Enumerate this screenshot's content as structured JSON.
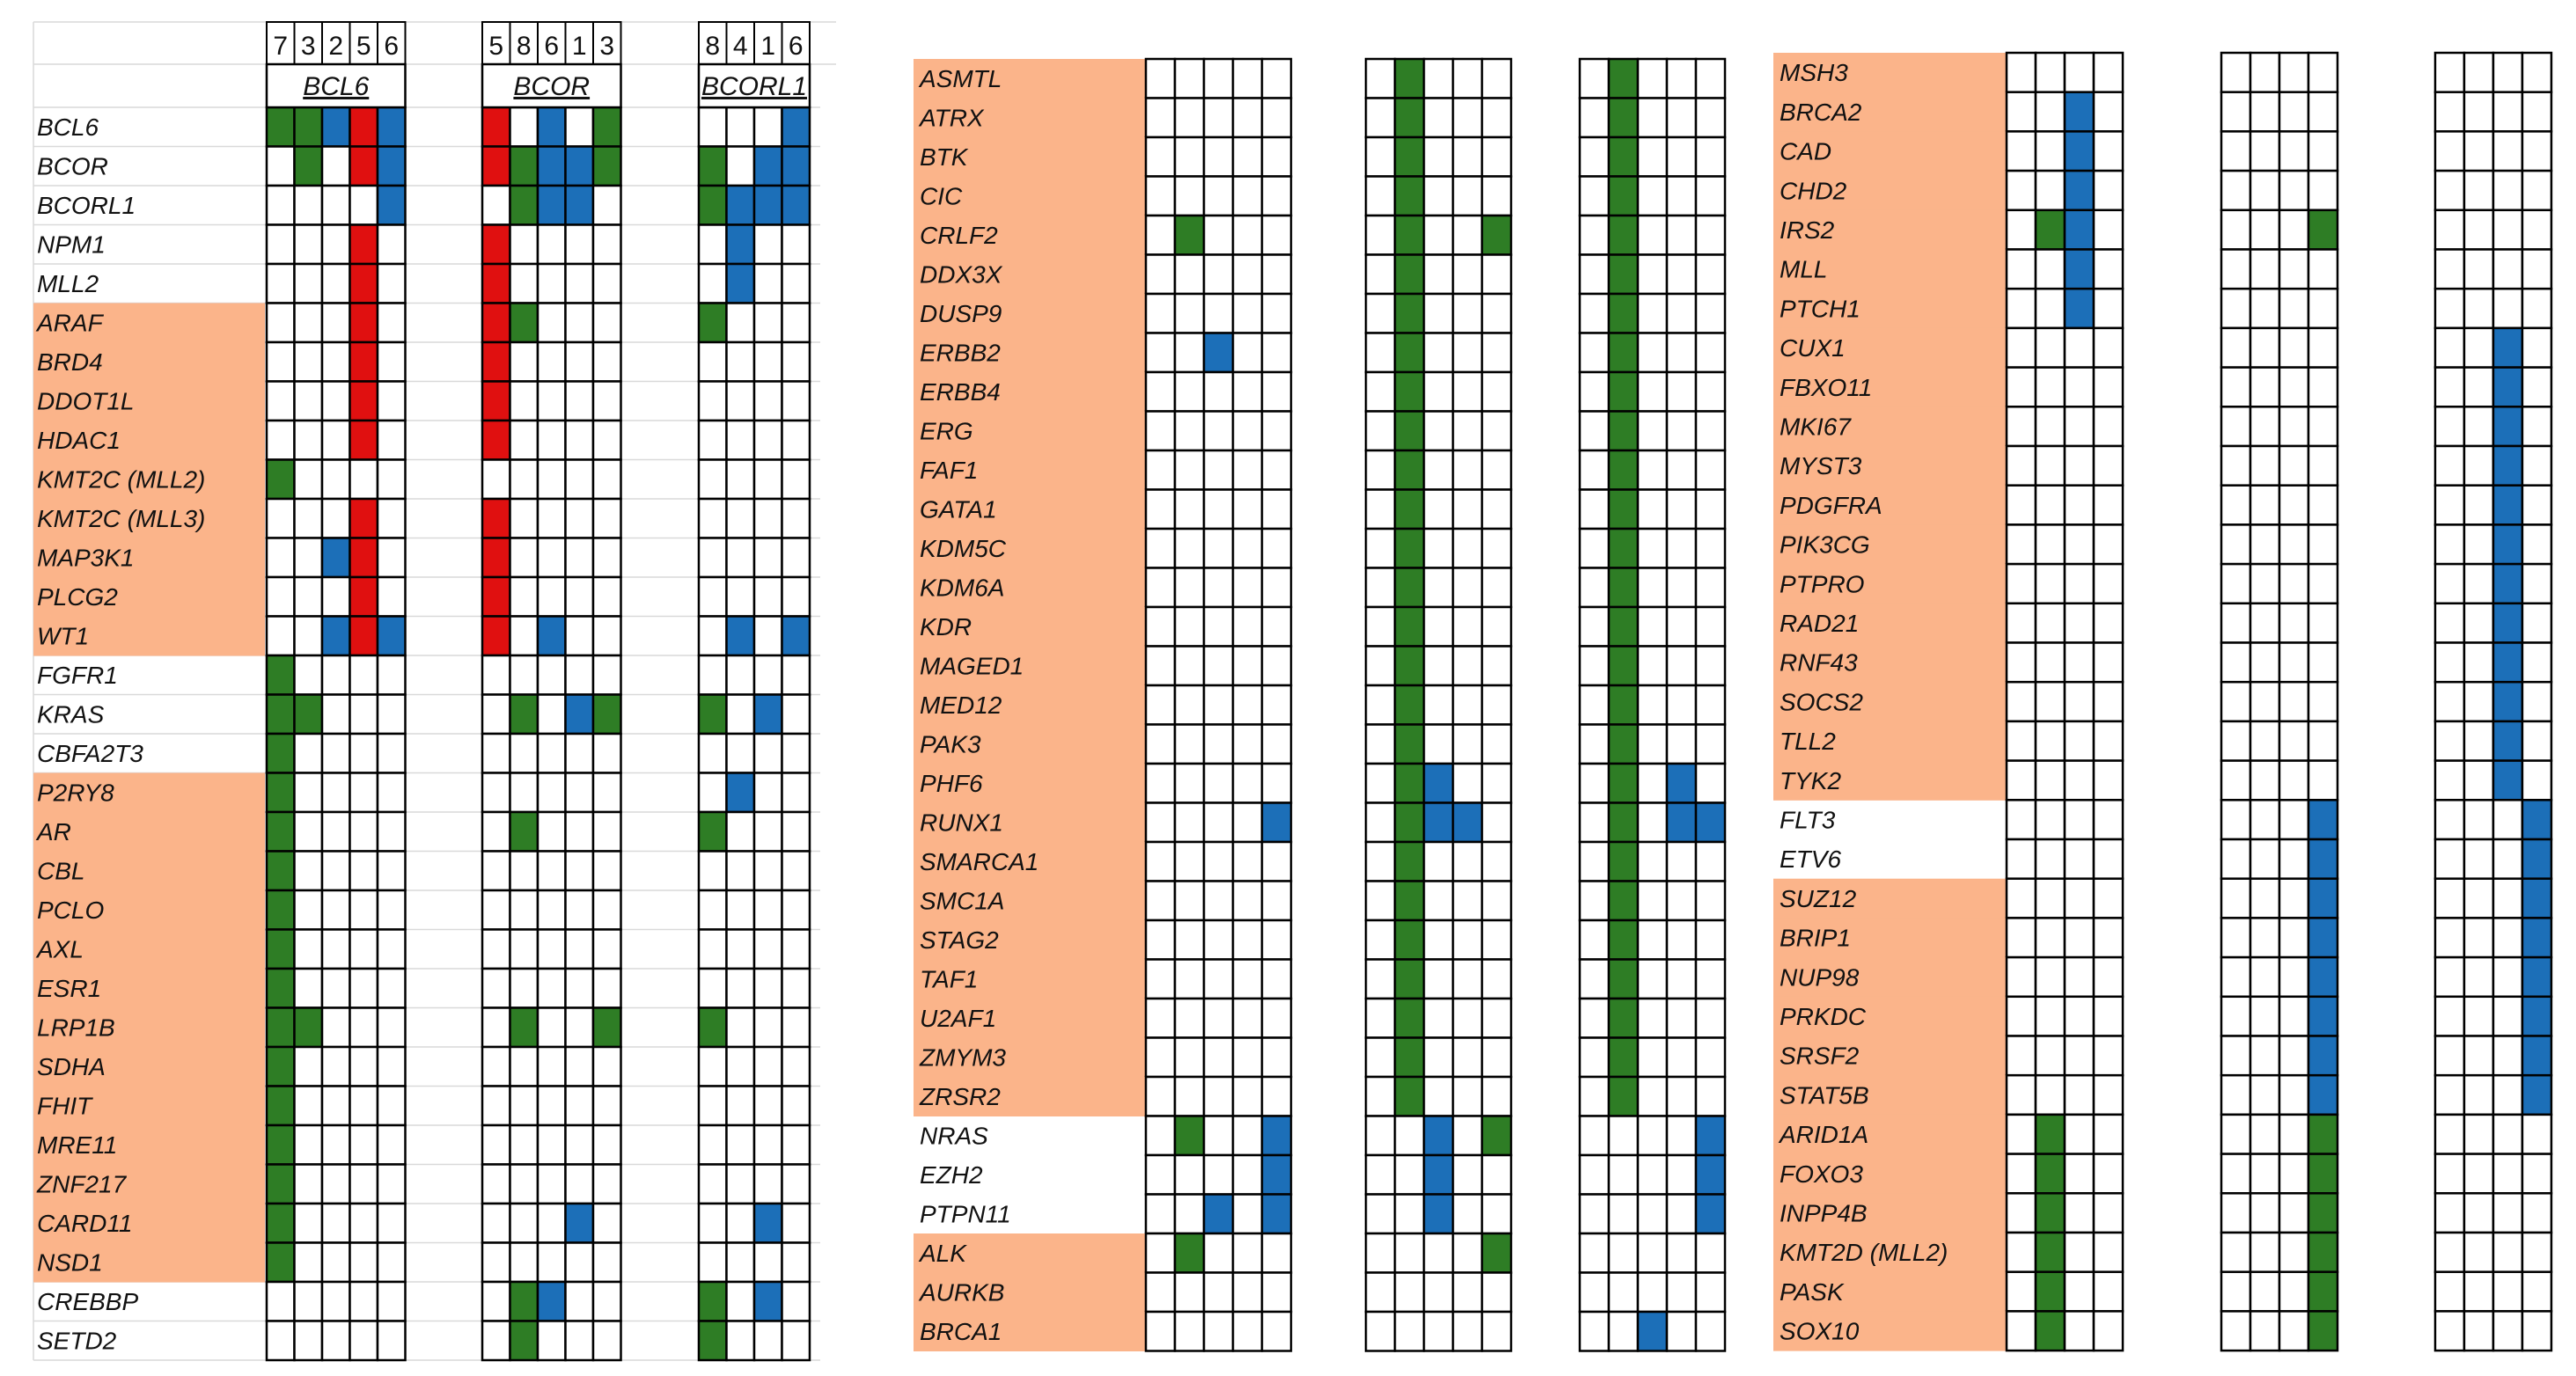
{
  "colors": {
    "highlight_band": "#FBB48A",
    "green": "#2E7D25",
    "blue": "#1C6FB8",
    "red": "#E01010",
    "grid": "#000000",
    "light_grid": "#d9d9d9"
  },
  "chart_data": [
    {
      "type": "heatmap",
      "panel": "left",
      "column_numbers": {
        "BCL6": [
          "7",
          "3",
          "2",
          "5",
          "6"
        ],
        "BCOR": [
          "5",
          "8",
          "6",
          "1",
          "3"
        ],
        "BCORL1": [
          "8",
          "4",
          "1",
          "6"
        ]
      },
      "group_labels": [
        "BCL6",
        "BCOR",
        "BCORL1"
      ],
      "genes": [
        {
          "name": "BCL6",
          "highlight": false,
          "groups": [
            "GGBRB",
            "R.B.G",
            "...B"
          ]
        },
        {
          "name": "BCOR",
          "highlight": false,
          "groups": [
            ".G.RB",
            "RGBBG",
            "G.BB"
          ]
        },
        {
          "name": "BCORL1",
          "highlight": false,
          "groups": [
            "....B",
            ".GBB.",
            "GBBB"
          ]
        },
        {
          "name": "NPM1",
          "highlight": false,
          "groups": [
            "...R.",
            "R....",
            ".B.."
          ]
        },
        {
          "name": "MLL2",
          "highlight": false,
          "groups": [
            "...R.",
            "R....",
            ".B.."
          ]
        },
        {
          "name": "ARAF",
          "highlight": true,
          "groups": [
            "...R.",
            "RG...",
            "G..."
          ]
        },
        {
          "name": "BRD4",
          "highlight": true,
          "groups": [
            "...R.",
            "R....",
            "...."
          ]
        },
        {
          "name": "DDOT1L",
          "highlight": true,
          "groups": [
            "...R.",
            "R....",
            "...."
          ]
        },
        {
          "name": "HDAC1",
          "highlight": true,
          "groups": [
            "...R.",
            "R....",
            "...."
          ]
        },
        {
          "name": "KMT2C (MLL2)",
          "highlight": true,
          "groups": [
            "G....",
            ".....",
            "...."
          ]
        },
        {
          "name": "KMT2C (MLL3)",
          "highlight": true,
          "groups": [
            "...R.",
            "R....",
            "...."
          ]
        },
        {
          "name": "MAP3K1",
          "highlight": true,
          "groups": [
            "..BR.",
            "R....",
            "...."
          ]
        },
        {
          "name": "PLCG2",
          "highlight": true,
          "groups": [
            "...R.",
            "R....",
            "...."
          ]
        },
        {
          "name": "WT1",
          "highlight": true,
          "groups": [
            "..BRB",
            "R.B..",
            ".B.B"
          ]
        },
        {
          "name": "FGFR1",
          "highlight": false,
          "groups": [
            "G....",
            ".....",
            "...."
          ]
        },
        {
          "name": "KRAS",
          "highlight": false,
          "groups": [
            "GG...",
            ".G.BG",
            "G.B."
          ]
        },
        {
          "name": "CBFA2T3",
          "highlight": false,
          "groups": [
            "G....",
            ".....",
            "...."
          ]
        },
        {
          "name": "P2RY8",
          "highlight": true,
          "groups": [
            "G....",
            ".....",
            ".B.."
          ]
        },
        {
          "name": "AR",
          "highlight": true,
          "groups": [
            "G....",
            ".G...",
            "G..."
          ]
        },
        {
          "name": "CBL",
          "highlight": true,
          "groups": [
            "G....",
            ".....",
            "...."
          ]
        },
        {
          "name": "PCLO",
          "highlight": true,
          "groups": [
            "G....",
            ".....",
            "...."
          ]
        },
        {
          "name": "AXL",
          "highlight": true,
          "groups": [
            "G....",
            ".....",
            "...."
          ]
        },
        {
          "name": "ESR1",
          "highlight": true,
          "groups": [
            "G....",
            ".....",
            "...."
          ]
        },
        {
          "name": "LRP1B",
          "highlight": true,
          "groups": [
            "GG...",
            ".G..G",
            "G..."
          ]
        },
        {
          "name": "SDHA",
          "highlight": true,
          "groups": [
            "G....",
            ".....",
            "...."
          ]
        },
        {
          "name": "FHIT",
          "highlight": true,
          "groups": [
            "G....",
            ".....",
            "...."
          ]
        },
        {
          "name": "MRE11",
          "highlight": true,
          "groups": [
            "G....",
            ".....",
            "...."
          ]
        },
        {
          "name": "ZNF217",
          "highlight": true,
          "groups": [
            "G....",
            ".....",
            "...."
          ]
        },
        {
          "name": "CARD11",
          "highlight": true,
          "groups": [
            "G....",
            "...B.",
            "..B."
          ]
        },
        {
          "name": "NSD1",
          "highlight": true,
          "groups": [
            "G....",
            ".....",
            "...."
          ]
        },
        {
          "name": "CREBBP",
          "highlight": false,
          "groups": [
            ".....",
            ".GB..",
            "G.B."
          ]
        },
        {
          "name": "SETD2",
          "highlight": false,
          "groups": [
            ".....",
            ".G...",
            "G..."
          ]
        }
      ]
    },
    {
      "type": "heatmap",
      "panel": "middle",
      "genes": [
        {
          "name": "ASMTL",
          "highlight": true,
          "groups": [
            ".....",
            ".G...",
            ".G..."
          ]
        },
        {
          "name": "ATRX",
          "highlight": true,
          "groups": [
            ".....",
            ".G...",
            ".G..."
          ]
        },
        {
          "name": "BTK",
          "highlight": true,
          "groups": [
            ".....",
            ".G...",
            ".G..."
          ]
        },
        {
          "name": "CIC",
          "highlight": true,
          "groups": [
            ".....",
            ".G...",
            ".G..."
          ]
        },
        {
          "name": "CRLF2",
          "highlight": true,
          "groups": [
            ".G...",
            ".G..G",
            ".G..."
          ]
        },
        {
          "name": "DDX3X",
          "highlight": true,
          "groups": [
            ".....",
            ".G...",
            ".G..."
          ]
        },
        {
          "name": "DUSP9",
          "highlight": true,
          "groups": [
            ".....",
            ".G...",
            ".G..."
          ]
        },
        {
          "name": "ERBB2",
          "highlight": true,
          "groups": [
            "..B..",
            ".G...",
            ".G..."
          ]
        },
        {
          "name": "ERBB4",
          "highlight": true,
          "groups": [
            ".....",
            ".G...",
            ".G..."
          ]
        },
        {
          "name": "ERG",
          "highlight": true,
          "groups": [
            ".....",
            ".G...",
            ".G..."
          ]
        },
        {
          "name": "FAF1",
          "highlight": true,
          "groups": [
            ".....",
            ".G...",
            ".G..."
          ]
        },
        {
          "name": "GATA1",
          "highlight": true,
          "groups": [
            ".....",
            ".G...",
            ".G..."
          ]
        },
        {
          "name": "KDM5C",
          "highlight": true,
          "groups": [
            ".....",
            ".G...",
            ".G..."
          ]
        },
        {
          "name": "KDM6A",
          "highlight": true,
          "groups": [
            ".....",
            ".G...",
            ".G..."
          ]
        },
        {
          "name": "KDR",
          "highlight": true,
          "groups": [
            ".....",
            ".G...",
            ".G..."
          ]
        },
        {
          "name": "MAGED1",
          "highlight": true,
          "groups": [
            ".....",
            ".G...",
            ".G..."
          ]
        },
        {
          "name": "MED12",
          "highlight": true,
          "groups": [
            ".....",
            ".G...",
            ".G..."
          ]
        },
        {
          "name": "PAK3",
          "highlight": true,
          "groups": [
            ".....",
            ".G...",
            ".G..."
          ]
        },
        {
          "name": "PHF6",
          "highlight": true,
          "groups": [
            ".....",
            ".GB..",
            ".G.B."
          ]
        },
        {
          "name": "RUNX1",
          "highlight": true,
          "groups": [
            "....B",
            ".GBB.",
            ".G.BB"
          ]
        },
        {
          "name": "SMARCA1",
          "highlight": true,
          "groups": [
            ".....",
            ".G...",
            ".G..."
          ]
        },
        {
          "name": "SMC1A",
          "highlight": true,
          "groups": [
            ".....",
            ".G...",
            ".G..."
          ]
        },
        {
          "name": "STAG2",
          "highlight": true,
          "groups": [
            ".....",
            ".G...",
            ".G..."
          ]
        },
        {
          "name": "TAF1",
          "highlight": true,
          "groups": [
            ".....",
            ".G...",
            ".G..."
          ]
        },
        {
          "name": "U2AF1",
          "highlight": true,
          "groups": [
            ".....",
            ".G...",
            ".G..."
          ]
        },
        {
          "name": "ZMYM3",
          "highlight": true,
          "groups": [
            ".....",
            ".G...",
            ".G..."
          ]
        },
        {
          "name": "ZRSR2",
          "highlight": true,
          "groups": [
            ".....",
            ".G...",
            ".G..."
          ]
        },
        {
          "name": "NRAS",
          "highlight": false,
          "groups": [
            ".G..B",
            "..B.G",
            "....B"
          ]
        },
        {
          "name": "EZH2",
          "highlight": false,
          "groups": [
            "....B",
            "..B..",
            "....B"
          ]
        },
        {
          "name": "PTPN11",
          "highlight": false,
          "groups": [
            "..B.B",
            "..B..",
            "....B"
          ]
        },
        {
          "name": "ALK",
          "highlight": true,
          "groups": [
            ".G...",
            "....G",
            "....."
          ]
        },
        {
          "name": "AURKB",
          "highlight": true,
          "groups": [
            ".....",
            ".....",
            "....."
          ]
        },
        {
          "name": "BRCA1",
          "highlight": true,
          "groups": [
            ".....",
            ".....",
            "..B.."
          ]
        }
      ]
    },
    {
      "type": "heatmap",
      "panel": "right",
      "genes": [
        {
          "name": "MSH3",
          "highlight": true,
          "groups": [
            "....",
            "....",
            "...."
          ]
        },
        {
          "name": "BRCA2",
          "highlight": true,
          "groups": [
            "..B.",
            "....",
            "...."
          ]
        },
        {
          "name": "CAD",
          "highlight": true,
          "groups": [
            "..B.",
            "....",
            "...."
          ]
        },
        {
          "name": "CHD2",
          "highlight": true,
          "groups": [
            "..B.",
            "....",
            "...."
          ]
        },
        {
          "name": "IRS2",
          "highlight": true,
          "groups": [
            ".GB.",
            "...G",
            "...."
          ]
        },
        {
          "name": "MLL",
          "highlight": true,
          "groups": [
            "..B.",
            "....",
            "...."
          ]
        },
        {
          "name": "PTCH1",
          "highlight": true,
          "groups": [
            "..B.",
            "....",
            "...."
          ]
        },
        {
          "name": "CUX1",
          "highlight": true,
          "groups": [
            "....",
            "....",
            "..B."
          ]
        },
        {
          "name": "FBXO11",
          "highlight": true,
          "groups": [
            "....",
            "....",
            "..B."
          ]
        },
        {
          "name": "MKI67",
          "highlight": true,
          "groups": [
            "....",
            "....",
            "..B."
          ]
        },
        {
          "name": "MYST3",
          "highlight": true,
          "groups": [
            "....",
            "....",
            "..B."
          ]
        },
        {
          "name": "PDGFRA",
          "highlight": true,
          "groups": [
            "....",
            "....",
            "..B."
          ]
        },
        {
          "name": "PIK3CG",
          "highlight": true,
          "groups": [
            "....",
            "....",
            "..B."
          ]
        },
        {
          "name": "PTPRO",
          "highlight": true,
          "groups": [
            "....",
            "....",
            "..B."
          ]
        },
        {
          "name": "RAD21",
          "highlight": true,
          "groups": [
            "....",
            "....",
            "..B."
          ]
        },
        {
          "name": "RNF43",
          "highlight": true,
          "groups": [
            "....",
            "....",
            "..B."
          ]
        },
        {
          "name": "SOCS2",
          "highlight": true,
          "groups": [
            "....",
            "....",
            "..B."
          ]
        },
        {
          "name": "TLL2",
          "highlight": true,
          "groups": [
            "....",
            "....",
            "..B."
          ]
        },
        {
          "name": "TYK2",
          "highlight": true,
          "groups": [
            "....",
            "....",
            "..B."
          ]
        },
        {
          "name": "FLT3",
          "highlight": false,
          "groups": [
            "....",
            "...B",
            "...B"
          ]
        },
        {
          "name": "ETV6",
          "highlight": false,
          "groups": [
            "....",
            "...B",
            "...B"
          ]
        },
        {
          "name": "SUZ12",
          "highlight": true,
          "groups": [
            "....",
            "...B",
            "...B"
          ]
        },
        {
          "name": "BRIP1",
          "highlight": true,
          "groups": [
            "....",
            "...B",
            "...B"
          ]
        },
        {
          "name": "NUP98",
          "highlight": true,
          "groups": [
            "....",
            "...B",
            "...B"
          ]
        },
        {
          "name": "PRKDC",
          "highlight": true,
          "groups": [
            "....",
            "...B",
            "...B"
          ]
        },
        {
          "name": "SRSF2",
          "highlight": true,
          "groups": [
            "....",
            "...B",
            "...B"
          ]
        },
        {
          "name": "STAT5B",
          "highlight": true,
          "groups": [
            "....",
            "...B",
            "...B"
          ]
        },
        {
          "name": "ARID1A",
          "highlight": true,
          "groups": [
            ".G..",
            "...G",
            "...."
          ]
        },
        {
          "name": "FOXO3",
          "highlight": true,
          "groups": [
            ".G..",
            "...G",
            "...."
          ]
        },
        {
          "name": "INPP4B",
          "highlight": true,
          "groups": [
            ".G..",
            "...G",
            "...."
          ]
        },
        {
          "name": "KMT2D (MLL2)",
          "highlight": true,
          "groups": [
            ".G..",
            "...G",
            "...."
          ]
        },
        {
          "name": "PASK",
          "highlight": true,
          "groups": [
            ".G..",
            "...G",
            "...."
          ]
        },
        {
          "name": "SOX10",
          "highlight": true,
          "groups": [
            ".G..",
            "...G",
            "...."
          ]
        }
      ]
    }
  ]
}
